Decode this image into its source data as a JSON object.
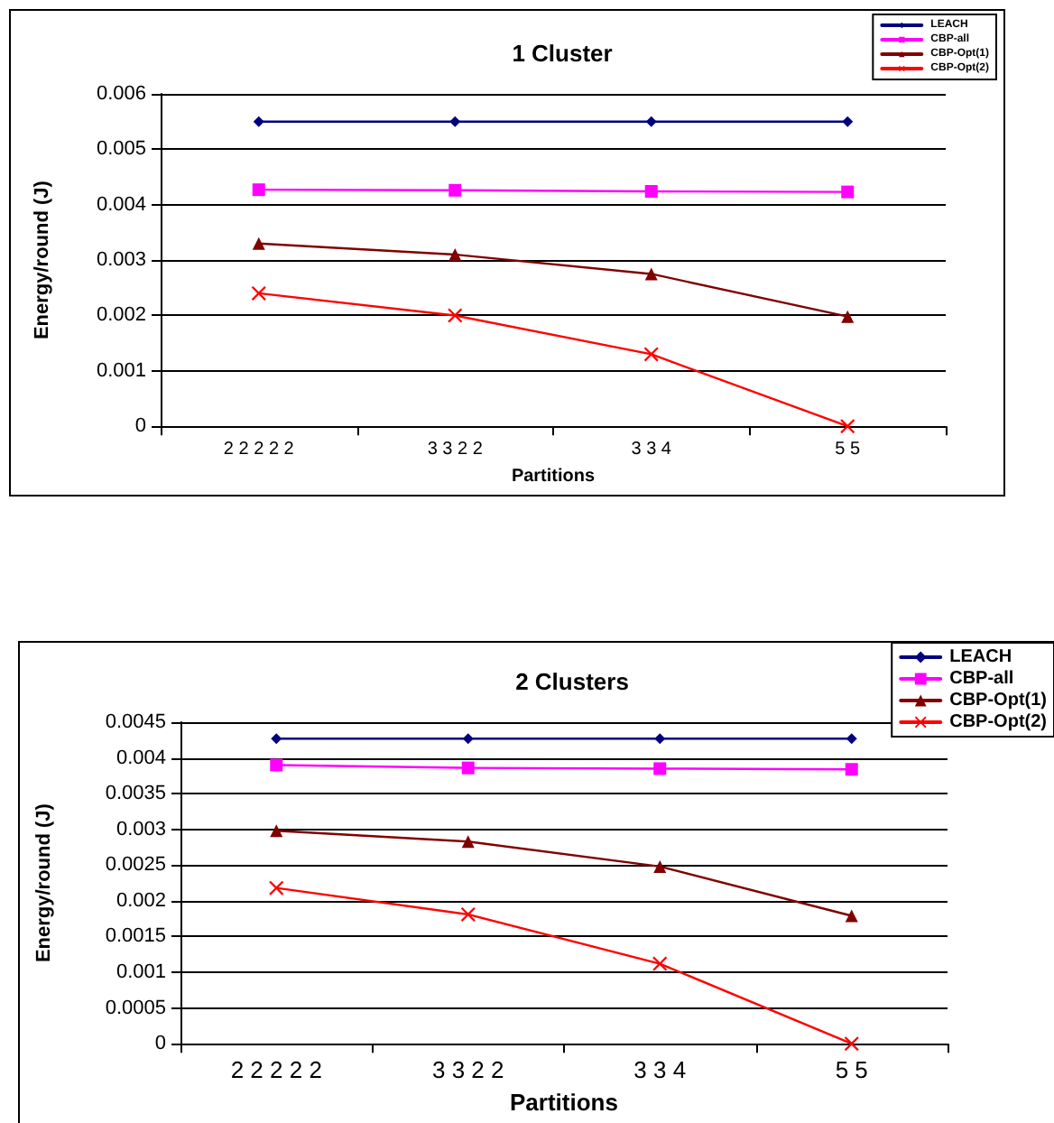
{
  "chart_data": [
    {
      "type": "line",
      "title": "1 Cluster",
      "xlabel": "Partitions",
      "ylabel": "Energy/round (J)",
      "categories": [
        "2 2 2 2 2",
        "3 3 2 2",
        "3 3 4",
        "5 5"
      ],
      "series": [
        {
          "name": "LEACH",
          "color": "#000080",
          "marker": "diamond",
          "values": [
            0.0055,
            0.0055,
            0.0055,
            0.0055
          ]
        },
        {
          "name": "CBP-all",
          "color": "#ff00ff",
          "marker": "square",
          "values": [
            0.00427,
            0.00426,
            0.00424,
            0.00423
          ]
        },
        {
          "name": "CBP-Opt(1)",
          "color": "#800000",
          "marker": "triangle",
          "values": [
            0.0033,
            0.0031,
            0.00275,
            0.00198
          ]
        },
        {
          "name": "CBP-Opt(2)",
          "color": "#ff0000",
          "marker": "cross",
          "values": [
            0.0024,
            0.002,
            0.0013,
            0
          ]
        }
      ],
      "ylim": [
        0,
        0.006
      ],
      "yticks": [
        0,
        0.001,
        0.002,
        0.003,
        0.004,
        0.005,
        0.006
      ],
      "grid": "y",
      "legend": "top right",
      "line_style": "solid"
    },
    {
      "type": "line",
      "title": "2 Clusters",
      "xlabel": "Partitions",
      "ylabel": "Energy/round (J)",
      "categories": [
        "2 2 2 2 2",
        "3 3 2 2",
        "3 3 4",
        "5 5"
      ],
      "series": [
        {
          "name": "LEACH",
          "color": "#000080",
          "marker": "diamond",
          "values": [
            0.00427,
            0.00427,
            0.00427,
            0.00427
          ]
        },
        {
          "name": "CBP-all",
          "color": "#ff00ff",
          "marker": "square",
          "values": [
            0.0039,
            0.00386,
            0.00385,
            0.00384
          ]
        },
        {
          "name": "CBP-Opt(1)",
          "color": "#800000",
          "marker": "triangle",
          "values": [
            0.00298,
            0.00283,
            0.00248,
            0.00179
          ]
        },
        {
          "name": "CBP-Opt(2)",
          "color": "#ff0000",
          "marker": "cross",
          "values": [
            0.00218,
            0.00181,
            0.00112,
            0
          ]
        }
      ],
      "ylim": [
        0,
        0.0045
      ],
      "yticks": [
        0,
        0.0005,
        0.001,
        0.0015,
        0.002,
        0.0025,
        0.003,
        0.0035,
        0.004,
        0.0045
      ],
      "grid": "y",
      "legend": "top right",
      "line_style": "solid"
    }
  ]
}
